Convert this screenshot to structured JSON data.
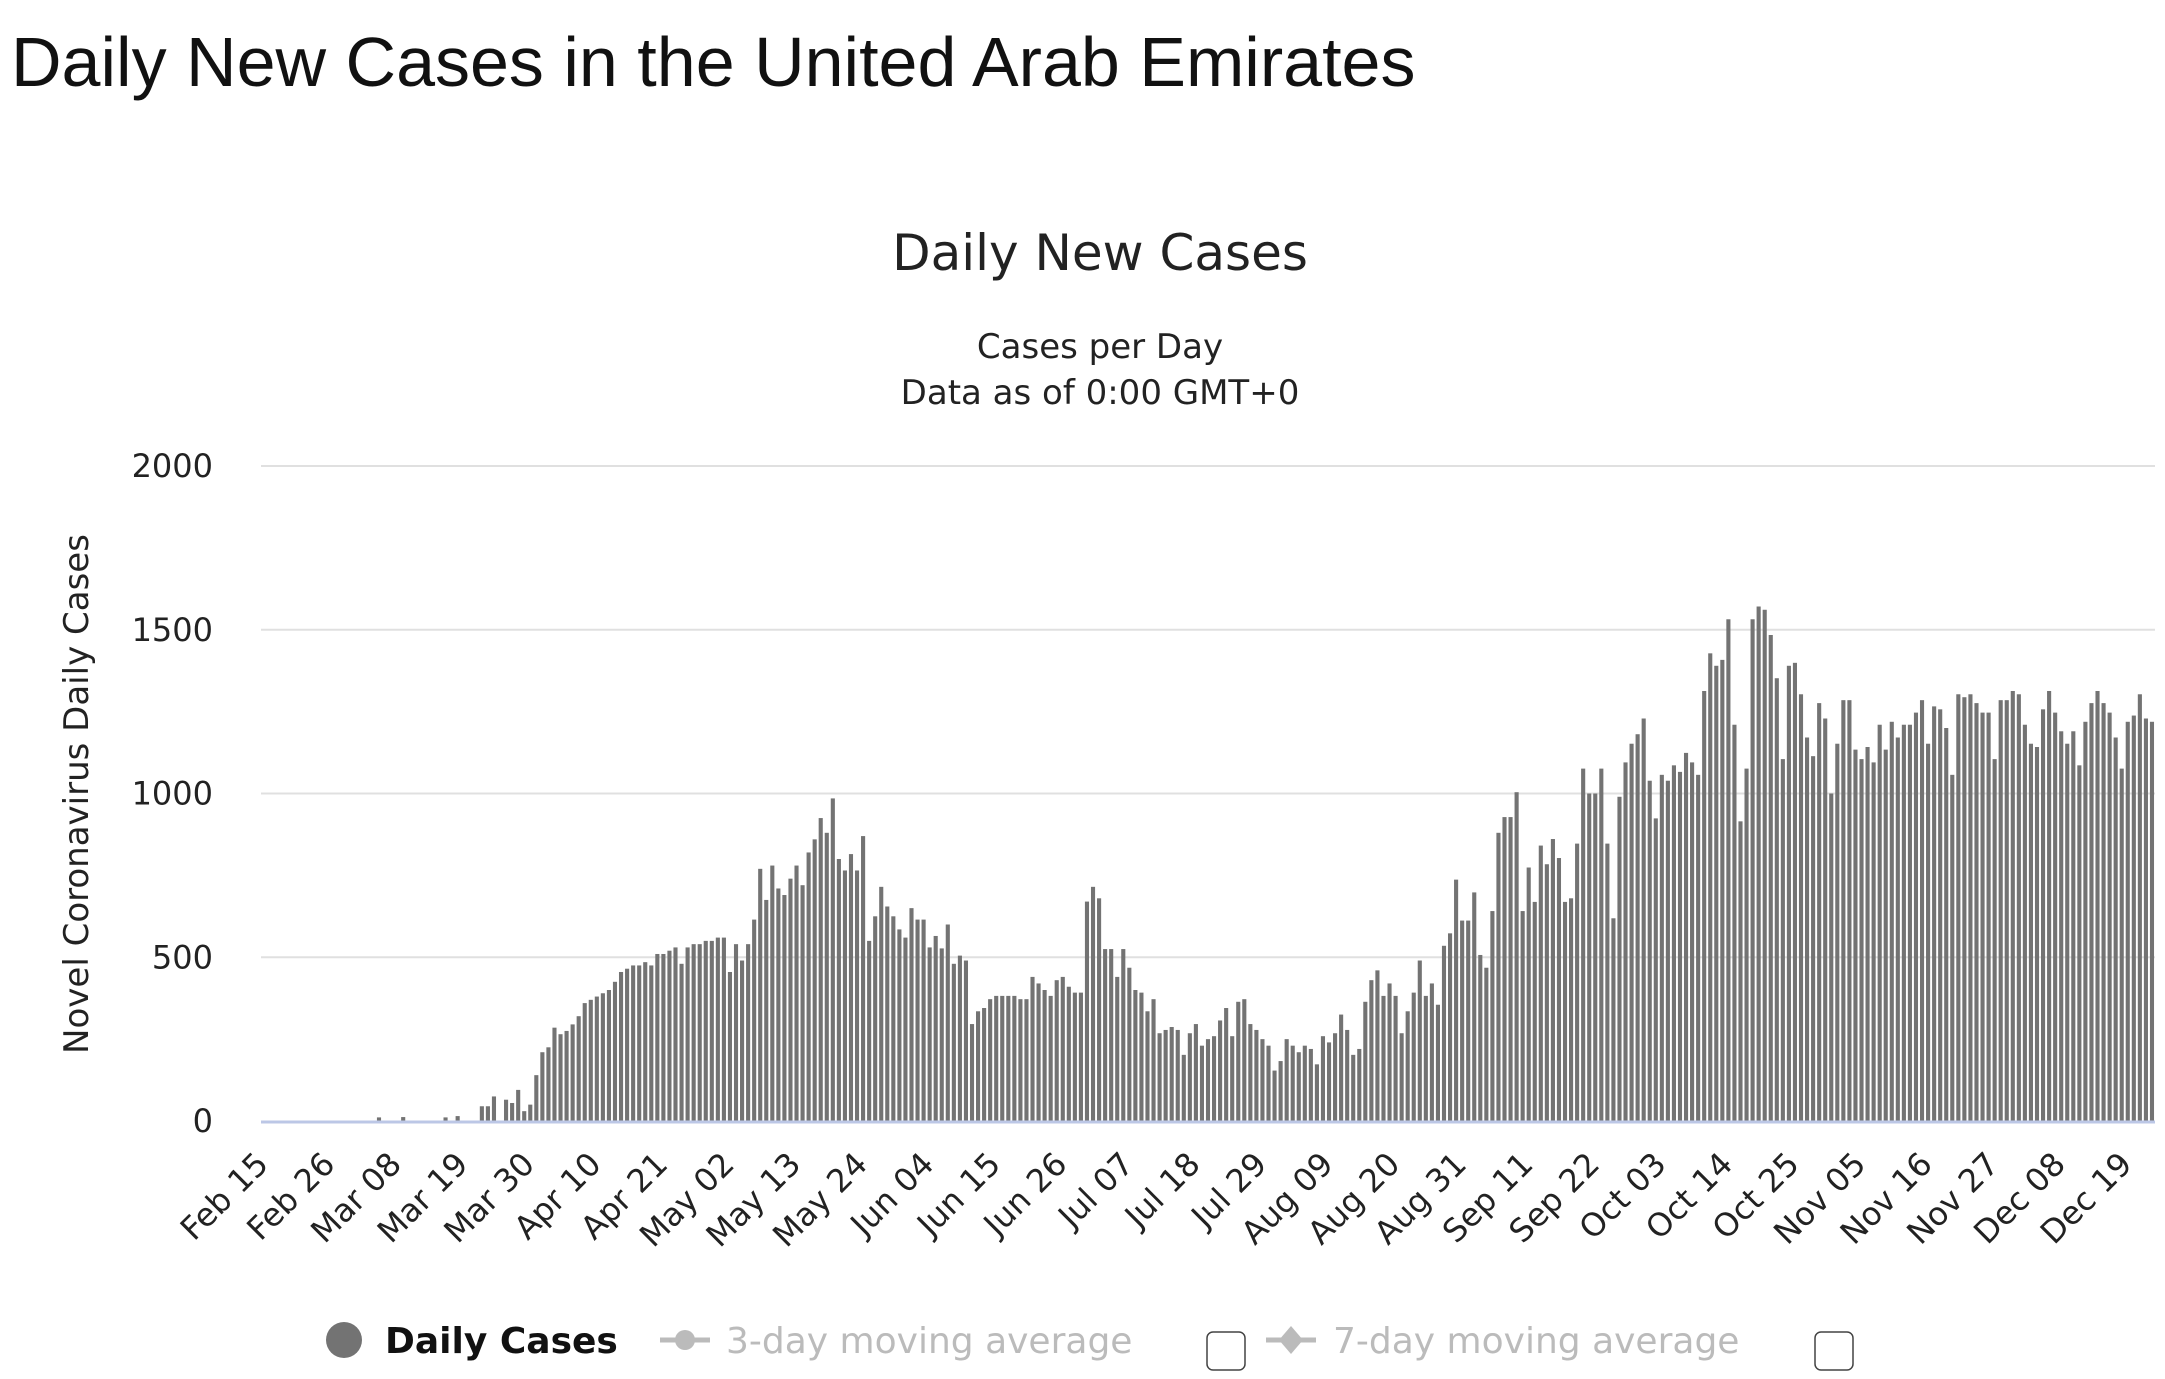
{
  "page": {
    "title": "Daily New Cases in the United Arab Emirates"
  },
  "chart_data": {
    "type": "bar",
    "title": "Daily New Cases",
    "subtitle_lines": [
      "Cases per Day",
      "Data as of 0:00 GMT+0"
    ],
    "ylabel": "Novel Coronavirus Daily Cases",
    "xlabel": "",
    "ylim": [
      0,
      2000
    ],
    "y_ticks": [
      "0",
      "500",
      "1000",
      "1500",
      "2000"
    ],
    "x_tick_labels": [
      "Feb 15",
      "Feb 26",
      "Mar 08",
      "Mar 19",
      "Mar 30",
      "Apr 10",
      "Apr 21",
      "May 02",
      "May 13",
      "May 24",
      "Jun 04",
      "Jun 15",
      "Jun 26",
      "Jul 07",
      "Jul 18",
      "Jul 29",
      "Aug 09",
      "Aug 20",
      "Aug 31",
      "Sep 11",
      "Sep 22",
      "Oct 03",
      "Oct 14",
      "Oct 25",
      "Nov 05",
      "Nov 16",
      "Nov 27",
      "Dec 08",
      "Dec 19"
    ],
    "x_tick_interval_days": 11,
    "grid": true,
    "bar_color": "#737373",
    "legend_position": "bottom",
    "legend": [
      {
        "label": "Daily Cases",
        "active": true,
        "color": "#737373",
        "marker": "circle"
      },
      {
        "label": "3-day moving average",
        "active": false,
        "color": "#bbbbbb",
        "marker": "circle",
        "checked": false
      },
      {
        "label": "7-day moving average",
        "active": false,
        "color": "#bbbbbb",
        "marker": "diamond",
        "checked": false
      }
    ],
    "series": [
      {
        "name": "Daily Cases",
        "values": [
          0,
          0,
          0,
          0,
          0,
          0,
          0,
          0,
          0,
          0,
          0,
          0,
          0,
          0,
          0,
          0,
          0,
          0,
          0,
          11,
          0,
          0,
          0,
          12,
          0,
          0,
          0,
          0,
          0,
          0,
          11,
          0,
          15,
          0,
          0,
          0,
          45,
          45,
          75,
          0,
          65,
          55,
          95,
          30,
          50,
          140,
          210,
          225,
          285,
          265,
          275,
          295,
          320,
          360,
          370,
          380,
          390,
          400,
          425,
          455,
          465,
          475,
          475,
          485,
          475,
          510,
          510,
          520,
          530,
          480,
          530,
          540,
          540,
          550,
          550,
          560,
          560,
          455,
          540,
          490,
          540,
          615,
          770,
          675,
          780,
          710,
          690,
          740,
          780,
          720,
          820,
          860,
          925,
          880,
          985,
          800,
          765,
          815,
          765,
          870,
          550,
          625,
          715,
          655,
          625,
          585,
          560,
          650,
          615,
          615,
          530,
          565,
          527,
          600,
          480,
          505,
          490,
          296,
          335,
          345,
          372,
          382,
          382,
          382,
          382,
          372,
          372,
          440,
          420,
          400,
          382,
          430,
          440,
          410,
          392,
          392,
          670,
          715,
          680,
          525,
          525,
          440,
          525,
          468,
          400,
          392,
          335,
          372,
          268,
          278,
          287,
          278,
          202,
          268,
          296,
          230,
          250,
          259,
          307,
          345,
          259,
          364,
          372,
          296,
          278,
          250,
          230,
          154,
          183,
          250,
          230,
          210,
          230,
          220,
          173,
          259,
          240,
          268,
          325,
          278,
          202,
          220,
          364,
          430,
          460,
          382,
          420,
          382,
          268,
          335,
          392,
          490,
          382,
          420,
          355,
          535,
          573,
          737,
          612,
          612,
          698,
          507,
          468,
          641,
          880,
          928,
          928,
          1004,
          641,
          774,
          669,
          841,
          784,
          861,
          803,
          669,
          680,
          847,
          1076,
          1000,
          1000,
          1076,
          847,
          619,
          990,
          1095,
          1152,
          1181,
          1229,
          1039,
          924,
          1057,
          1039,
          1086,
          1066,
          1124,
          1095,
          1057,
          1313,
          1428,
          1390,
          1408,
          1532,
          1210,
          915,
          1076,
          1532,
          1571,
          1561,
          1484,
          1352,
          1105,
          1390,
          1399,
          1303,
          1171,
          1114,
          1276,
          1229,
          1000,
          1152,
          1285,
          1285,
          1134,
          1105,
          1142,
          1095,
          1210,
          1134,
          1219,
          1171,
          1210,
          1210,
          1247,
          1285,
          1152,
          1266,
          1257,
          1200,
          1057,
          1303,
          1294,
          1303,
          1276,
          1247,
          1247,
          1105,
          1285,
          1285,
          1313,
          1303,
          1210,
          1152,
          1142,
          1257,
          1313,
          1247,
          1190,
          1152,
          1190,
          1086,
          1219,
          1276,
          1313,
          1276,
          1247,
          1171,
          1076,
          1219,
          1238,
          1303,
          1229,
          1219
        ]
      }
    ]
  }
}
